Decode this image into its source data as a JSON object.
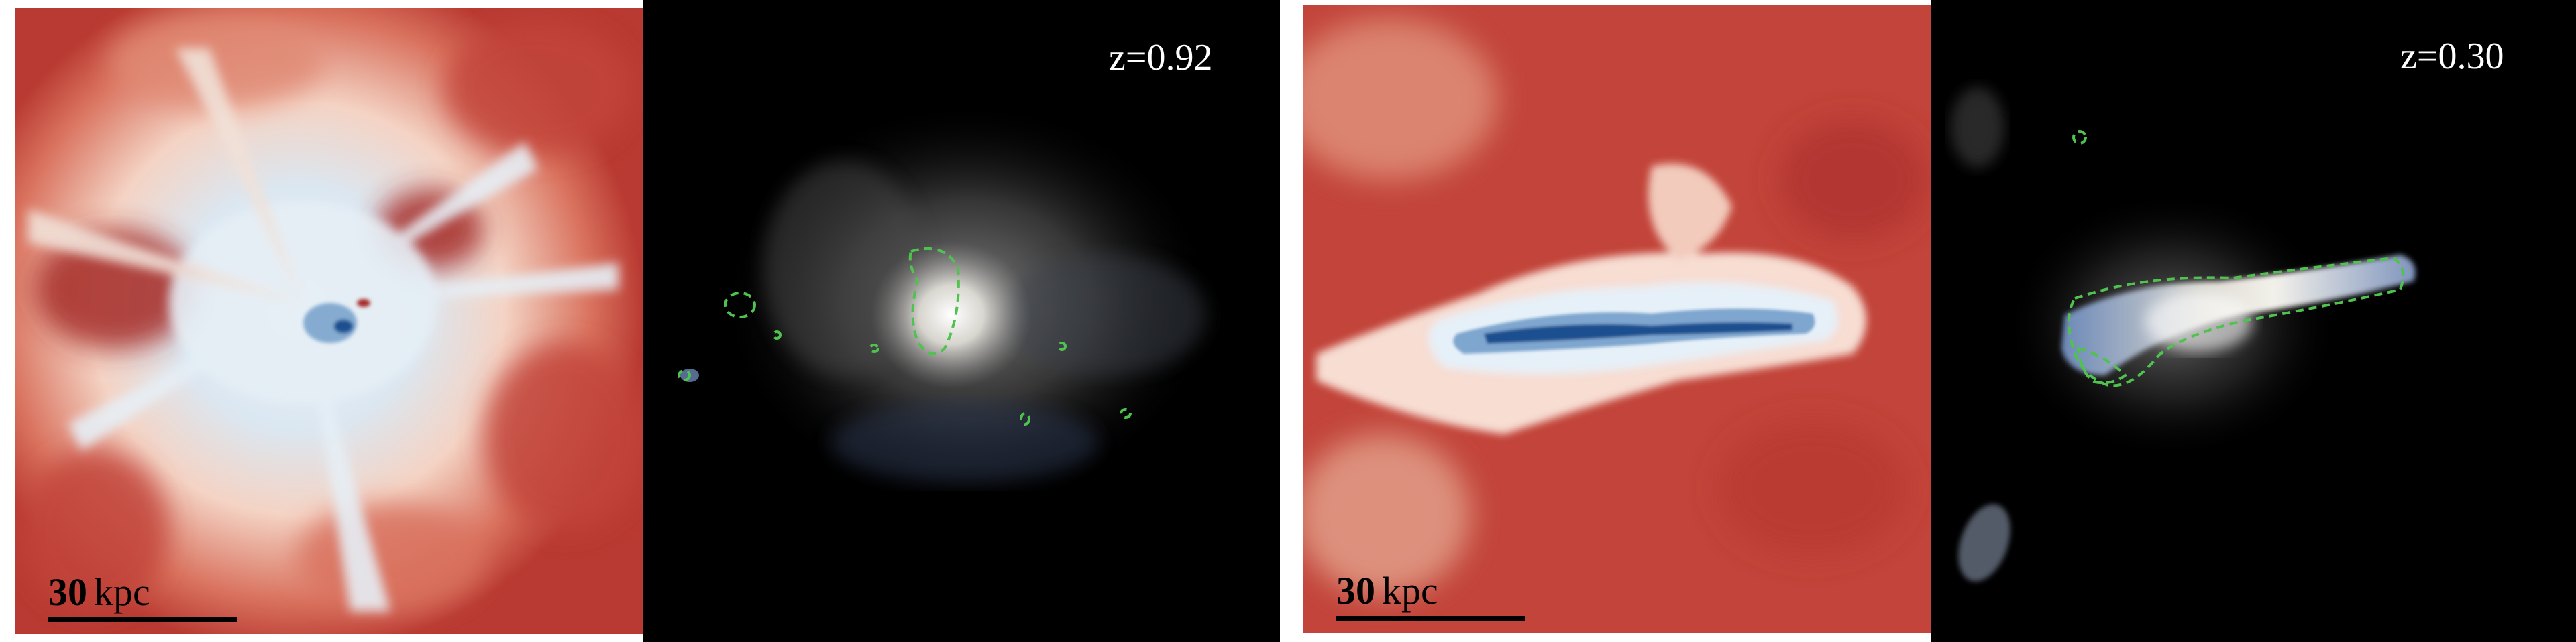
{
  "panels": [
    {
      "id": "gas-map-z092",
      "content": "gas temperature map",
      "scale_value": "30",
      "scale_unit": "kpc"
    },
    {
      "id": "stellar-image-z092",
      "content": "mock stellar light image",
      "redshift": "z=0.92"
    },
    {
      "id": "gas-map-z030",
      "content": "gas temperature map",
      "scale_value": "30",
      "scale_unit": "kpc"
    },
    {
      "id": "stellar-image-z030",
      "content": "mock stellar light image",
      "redshift": "z=0.30"
    }
  ],
  "colors": {
    "hot_gas": "#c2443a",
    "warm_gas": "#f3c9b8",
    "cool_gas": "#dde9f2",
    "cold_gas": "#2a66a8",
    "background_dark": "#000000",
    "contour": "#4fc24f",
    "stellar_glow": "#ffffff"
  },
  "scale_bar_length": 0.3
}
